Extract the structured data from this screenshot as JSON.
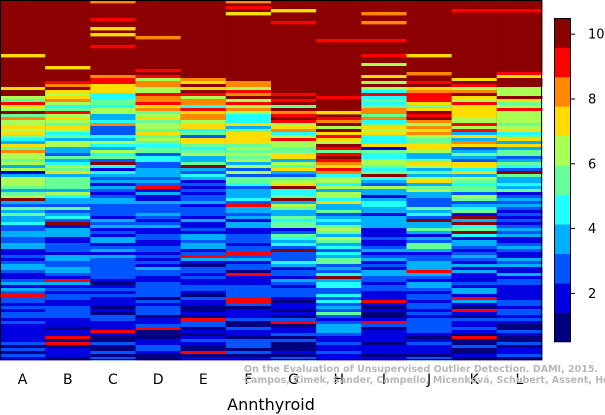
{
  "chart_data": {
    "type": "heatmap",
    "xlabel": "Annthyroid",
    "categories": [
      "A",
      "B",
      "C",
      "D",
      "E",
      "F",
      "G",
      "H",
      "I",
      "J",
      "K",
      "L"
    ],
    "colorbar": {
      "range": [
        0.5,
        10.5
      ],
      "ticks": [
        2,
        4,
        6,
        8,
        10
      ],
      "colors": [
        "#00007f",
        "#0000e0",
        "#0055ff",
        "#00b0ff",
        "#22ffff",
        "#66ff99",
        "#aaff55",
        "#ffdd00",
        "#ff8800",
        "#ff0000",
        "#8b0000"
      ]
    },
    "rows_per_column": 120,
    "column_profiles": [
      {
        "name": "A",
        "red_start": 0.215,
        "mix_end": 0.48,
        "low_tail": 0.62
      },
      {
        "name": "B",
        "red_start": 0.21,
        "mix_end": 0.46,
        "low_tail": 0.66
      },
      {
        "name": "C",
        "red_start": 0.2,
        "mix_end": 0.38,
        "low_tail": 0.48
      },
      {
        "name": "D",
        "red_start": 0.185,
        "mix_end": 0.36,
        "low_tail": 0.45
      },
      {
        "name": "E",
        "red_start": 0.195,
        "mix_end": 0.38,
        "low_tail": 0.5
      },
      {
        "name": "F",
        "red_start": 0.225,
        "mix_end": 0.4,
        "low_tail": 0.55
      },
      {
        "name": "G",
        "red_start": 0.245,
        "mix_end": 0.5,
        "low_tail": 0.7
      },
      {
        "name": "H",
        "red_start": 0.32,
        "mix_end": 0.62,
        "low_tail": 0.9
      },
      {
        "name": "I",
        "red_start": 0.165,
        "mix_end": 0.42,
        "low_tail": 0.6
      },
      {
        "name": "J",
        "red_start": 0.215,
        "mix_end": 0.48,
        "low_tail": 0.72
      },
      {
        "name": "K",
        "red_start": 0.215,
        "mix_end": 0.46,
        "low_tail": 0.65
      },
      {
        "name": "L",
        "red_start": 0.18,
        "mix_end": 0.4,
        "low_tail": 0.55
      }
    ]
  },
  "credit": {
    "line1": "On the Evaluation of Unsupervised Outlier Detection. DAMI, 2015.",
    "line2": "Campos, Zimek, Sander, Campello, Micenková, Schubert, Assent, Houle"
  }
}
